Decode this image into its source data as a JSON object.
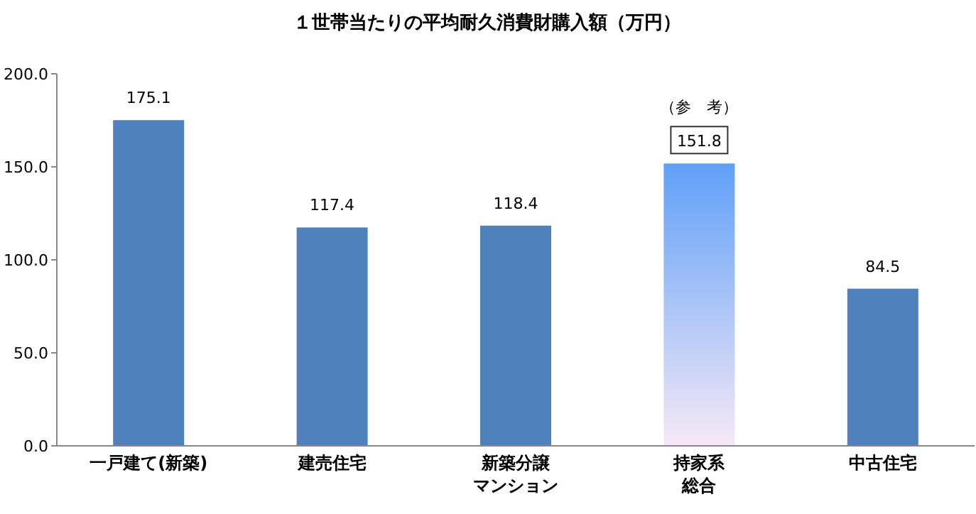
{
  "chart_data": {
    "type": "bar",
    "title": "１世帯当たりの平均耐久消費財購入額（万円）",
    "categories": [
      "一戸建て(新築)",
      "建売住宅",
      "新築分譲マンション",
      "持家系総合",
      "中古住宅"
    ],
    "values": [
      175.1,
      117.4,
      118.4,
      151.8,
      84.5
    ],
    "colors": [
      "#4f81bd",
      "#4f81bd",
      "#4f81bd",
      "#5fa0f8",
      "#4f81bd"
    ],
    "ylim": [
      0,
      200
    ],
    "yticks": [
      {
        "value": 0,
        "label": "0.0"
      },
      {
        "value": 50,
        "label": "50.0"
      },
      {
        "value": 100,
        "label": "100.0"
      },
      {
        "value": 150,
        "label": "150.0"
      },
      {
        "value": 200,
        "label": "200.0"
      }
    ],
    "data_labels": true,
    "annotations": [
      "（参　考）"
    ]
  }
}
